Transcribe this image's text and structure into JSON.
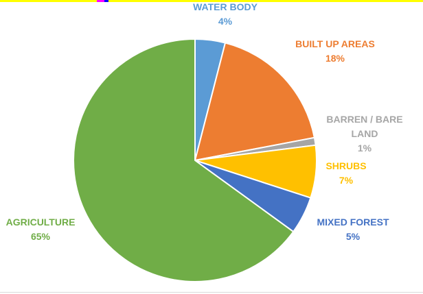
{
  "chart_data": {
    "type": "pie",
    "title": "",
    "slices": [
      {
        "label": "WATER BODY",
        "value": 4,
        "display": "4%",
        "color": "#5b9bd5"
      },
      {
        "label": "BUILT UP AREAS",
        "value": 18,
        "display": "18%",
        "color": "#ed7d31"
      },
      {
        "label": "BARREN / BARE LAND",
        "label_lines": [
          "BARREN / BARE",
          "LAND"
        ],
        "value": 1,
        "display": "1%",
        "color": "#a5a5a5"
      },
      {
        "label": "SHRUBS",
        "value": 7,
        "display": "7%",
        "color": "#ffc000"
      },
      {
        "label": "MIXED FOREST",
        "value": 5,
        "display": "5%",
        "color": "#4472c4"
      },
      {
        "label": "AGRICULTURE",
        "value": 65,
        "display": "65%",
        "color": "#70ad47"
      }
    ]
  }
}
